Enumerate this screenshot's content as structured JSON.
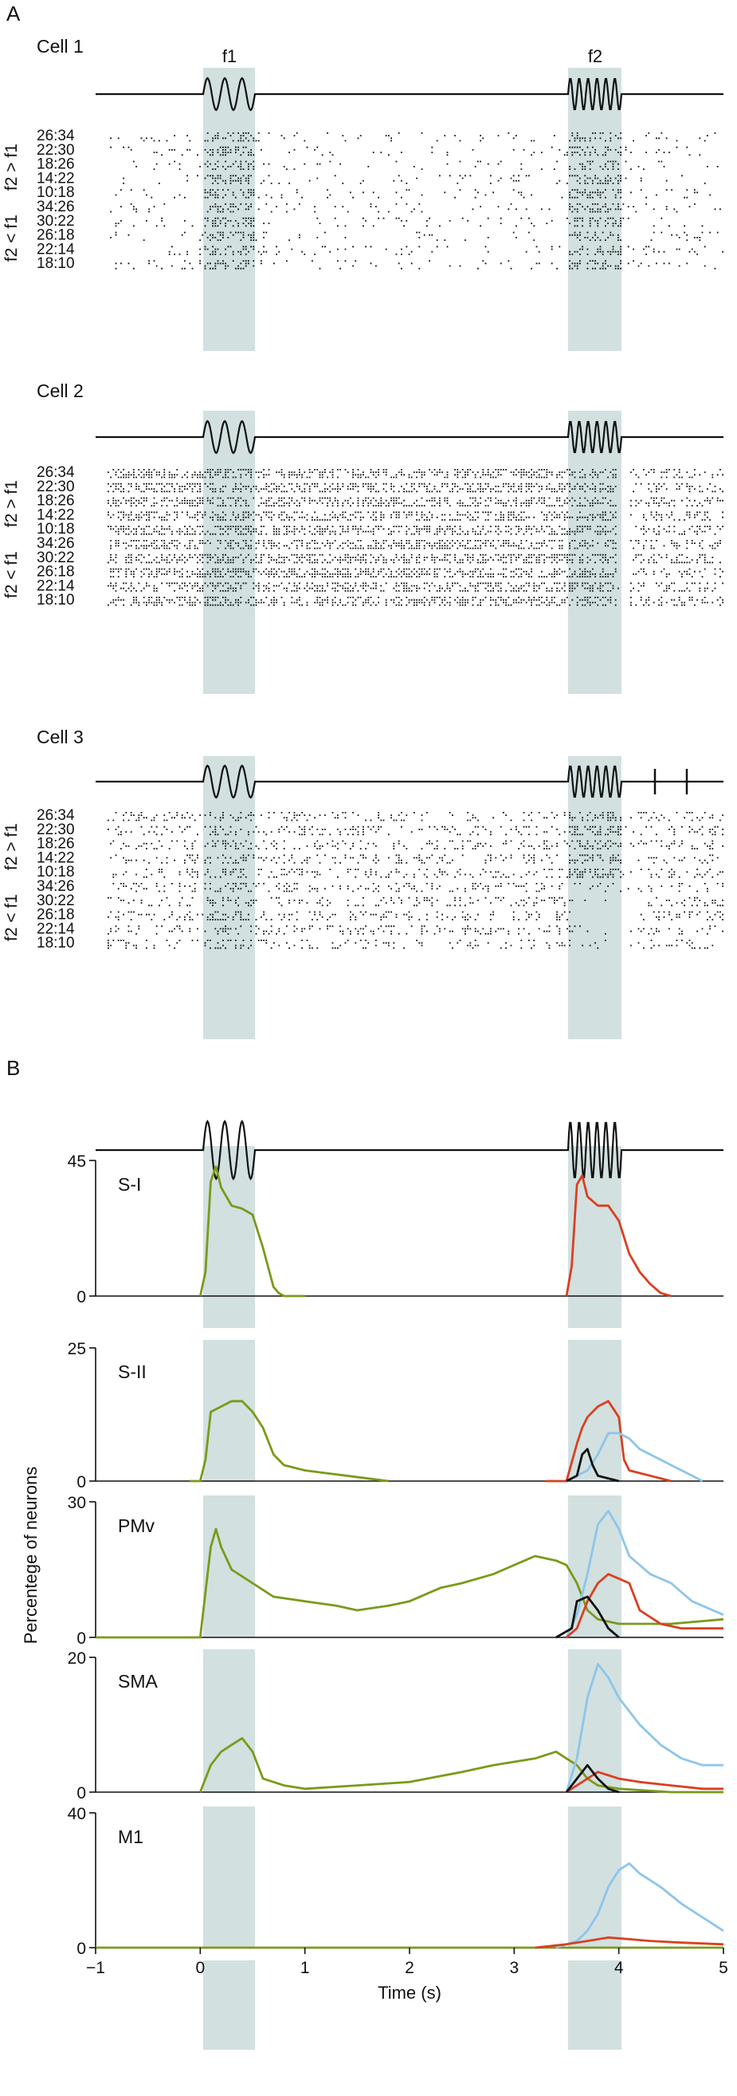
{
  "panel_labels": {
    "a": "A",
    "b": "B"
  },
  "stimulus": {
    "f1_label": "f1",
    "f2_label": "f2"
  },
  "raster_rows": [
    "26:34",
    "22:30",
    "18:26",
    "14:22",
    "10:18",
    "34:26",
    "30:22",
    "26:18",
    "22:14",
    "18:10"
  ],
  "group_labels": {
    "upper": "f2 > f1",
    "lower": "f2 < f1"
  },
  "cells": [
    {
      "title": "Cell 1"
    },
    {
      "title": "Cell 2"
    },
    {
      "title": "Cell 3"
    }
  ],
  "colors": {
    "green": "#7a9a1a",
    "red": "#d94020",
    "blue": "#8ec5ea",
    "black": "#111111",
    "shade": "#d2e0e0"
  },
  "chart_data": [
    {
      "type": "line",
      "title": "S-I",
      "xlabel": "Time (s)",
      "ylabel": "Percentege of neurons",
      "xlim": [
        -1,
        5
      ],
      "ylim": [
        0,
        45
      ],
      "yticks": [
        0,
        45
      ],
      "xticks": [
        -1,
        0,
        1,
        2,
        3,
        4,
        5
      ],
      "shaded_periods": [
        [
          0,
          0.5
        ],
        [
          3.5,
          4.0
        ]
      ],
      "series": [
        {
          "color": "#7a9a1a",
          "x": [
            0,
            0.05,
            0.1,
            0.15,
            0.2,
            0.3,
            0.4,
            0.5,
            0.6,
            0.7,
            0.75,
            0.8,
            1.0
          ],
          "y": [
            0,
            8,
            38,
            43,
            36,
            30,
            29,
            27,
            16,
            3,
            1,
            0,
            0
          ]
        },
        {
          "color": "#d94020",
          "x": [
            3.5,
            3.55,
            3.6,
            3.65,
            3.7,
            3.8,
            3.9,
            4.0,
            4.1,
            4.2,
            4.3,
            4.4,
            4.5
          ],
          "y": [
            0,
            10,
            37,
            40,
            33,
            30,
            30,
            25,
            14,
            8,
            4,
            1,
            0
          ]
        }
      ]
    },
    {
      "type": "line",
      "title": "S-II",
      "xlabel": "Time (s)",
      "ylabel": "Percentege of neurons",
      "xlim": [
        -1,
        5
      ],
      "ylim": [
        0,
        25
      ],
      "yticks": [
        0,
        25
      ],
      "xticks": [
        -1,
        0,
        1,
        2,
        3,
        4,
        5
      ],
      "shaded_periods": [
        [
          0,
          0.5
        ],
        [
          3.5,
          4.0
        ]
      ],
      "series": [
        {
          "color": "#7a9a1a",
          "x": [
            -0.1,
            0,
            0.05,
            0.1,
            0.2,
            0.3,
            0.4,
            0.5,
            0.6,
            0.7,
            0.8,
            1.0,
            1.2,
            1.4,
            1.6,
            1.8
          ],
          "y": [
            0,
            0,
            4,
            13,
            14,
            15,
            15,
            13,
            10,
            5,
            3,
            2,
            1.5,
            1,
            0.5,
            0
          ]
        },
        {
          "color": "#d94020",
          "x": [
            3.3,
            3.5,
            3.6,
            3.65,
            3.7,
            3.8,
            3.9,
            4.0,
            4.05,
            4.1,
            4.2,
            4.3,
            4.5
          ],
          "y": [
            0,
            0,
            7,
            10,
            12,
            14,
            15,
            12,
            4,
            2,
            1.5,
            1,
            0
          ]
        },
        {
          "color": "#8ec5ea",
          "x": [
            3.5,
            3.7,
            3.8,
            3.9,
            4.0,
            4.1,
            4.2,
            4.3,
            4.4,
            4.5,
            4.6,
            4.7,
            4.8
          ],
          "y": [
            0,
            2,
            5,
            9,
            9,
            8,
            6,
            5,
            4,
            3,
            2,
            1,
            0
          ]
        },
        {
          "color": "#111111",
          "x": [
            3.5,
            3.6,
            3.65,
            3.7,
            3.75,
            3.8,
            3.9,
            4.0
          ],
          "y": [
            0,
            1,
            5,
            6,
            3,
            1,
            0.5,
            0
          ]
        }
      ]
    },
    {
      "type": "line",
      "title": "PMv",
      "xlabel": "Time (s)",
      "ylabel": "Percentege of neurons",
      "xlim": [
        -1,
        5
      ],
      "ylim": [
        0,
        30
      ],
      "yticks": [
        0,
        30
      ],
      "xticks": [
        -1,
        0,
        1,
        2,
        3,
        4,
        5
      ],
      "shaded_periods": [
        [
          0,
          0.5
        ],
        [
          3.5,
          4.0
        ]
      ],
      "series": [
        {
          "color": "#7a9a1a",
          "x": [
            -1.0,
            -0.5,
            0,
            0.05,
            0.1,
            0.15,
            0.2,
            0.3,
            0.5,
            0.7,
            1.0,
            1.3,
            1.5,
            1.8,
            2.0,
            2.3,
            2.5,
            2.8,
            3.0,
            3.2,
            3.4,
            3.5,
            3.6,
            3.7,
            3.8,
            4.0,
            4.5,
            5.0
          ],
          "y": [
            0,
            0,
            0,
            10,
            20,
            24,
            20,
            15,
            12,
            9,
            8,
            7,
            6,
            7,
            8,
            11,
            12,
            14,
            16,
            18,
            17,
            16,
            12,
            6,
            4,
            3,
            3,
            4
          ]
        },
        {
          "color": "#8ec5ea",
          "x": [
            3.5,
            3.6,
            3.7,
            3.8,
            3.9,
            4.0,
            4.1,
            4.3,
            4.5,
            4.7,
            5.0
          ],
          "y": [
            0,
            5,
            14,
            25,
            28,
            24,
            18,
            14,
            12,
            8,
            5
          ]
        },
        {
          "color": "#d94020",
          "x": [
            3.5,
            3.6,
            3.7,
            3.8,
            3.9,
            4.0,
            4.1,
            4.2,
            4.4,
            4.6,
            5.0
          ],
          "y": [
            0,
            2,
            8,
            12,
            14,
            13,
            12,
            6,
            3,
            2,
            2
          ]
        },
        {
          "color": "#111111",
          "x": [
            3.4,
            3.55,
            3.6,
            3.7,
            3.8,
            3.9,
            4.0
          ],
          "y": [
            0,
            2,
            8,
            9,
            6,
            2,
            0
          ]
        }
      ]
    },
    {
      "type": "line",
      "title": "SMA",
      "xlabel": "Time (s)",
      "ylabel": "Percentege of neurons",
      "xlim": [
        -1,
        5
      ],
      "ylim": [
        0,
        20
      ],
      "yticks": [
        0,
        20
      ],
      "xticks": [
        -1,
        0,
        1,
        2,
        3,
        4,
        5
      ],
      "shaded_periods": [
        [
          0,
          0.5
        ],
        [
          3.5,
          4.0
        ]
      ],
      "series": [
        {
          "color": "#7a9a1a",
          "x": [
            0,
            0.05,
            0.1,
            0.2,
            0.3,
            0.4,
            0.5,
            0.6,
            0.8,
            1.0,
            1.5,
            2.0,
            2.5,
            2.8,
            3.0,
            3.2,
            3.4,
            3.5,
            3.6,
            3.7,
            3.8,
            4.0,
            4.5,
            5.0
          ],
          "y": [
            0,
            2,
            4,
            6,
            7,
            8,
            6,
            2,
            1,
            0.5,
            1,
            1.5,
            3,
            4,
            4.5,
            5,
            6,
            5,
            4,
            2,
            1,
            0.5,
            0,
            0
          ]
        },
        {
          "color": "#8ec5ea",
          "x": [
            3.5,
            3.6,
            3.7,
            3.8,
            3.9,
            4.0,
            4.2,
            4.4,
            4.6,
            4.8,
            5.0
          ],
          "y": [
            0,
            5,
            14,
            19,
            17,
            14,
            10,
            7,
            5,
            4,
            4
          ]
        },
        {
          "color": "#d94020",
          "x": [
            3.5,
            3.7,
            3.8,
            4.0,
            4.2,
            4.5,
            4.8,
            5.0
          ],
          "y": [
            0,
            2,
            3,
            2,
            1.5,
            1,
            0.5,
            0.5
          ]
        },
        {
          "color": "#111111",
          "x": [
            3.5,
            3.6,
            3.7,
            3.8,
            3.9,
            4.0
          ],
          "y": [
            0,
            2,
            4,
            2,
            0.5,
            0
          ]
        }
      ]
    },
    {
      "type": "line",
      "title": "M1",
      "xlabel": "Time (s)",
      "ylabel": "Percentege of neurons",
      "xlim": [
        -1,
        5
      ],
      "ylim": [
        0,
        40
      ],
      "yticks": [
        0,
        40
      ],
      "xticks": [
        -1,
        0,
        1,
        2,
        3,
        4,
        5
      ],
      "shaded_periods": [
        [
          0,
          0.5
        ],
        [
          3.5,
          4.0
        ]
      ],
      "series": [
        {
          "color": "#7a9a1a",
          "x": [
            -1.0,
            0,
            1.0,
            2.0,
            3.0,
            4.0,
            5.0
          ],
          "y": [
            0,
            0,
            0,
            0,
            0,
            0,
            0
          ]
        },
        {
          "color": "#8ec5ea",
          "x": [
            3.4,
            3.6,
            3.7,
            3.8,
            3.9,
            4.0,
            4.1,
            4.2,
            4.4,
            4.6,
            4.8,
            5.0
          ],
          "y": [
            0,
            2,
            5,
            10,
            18,
            23,
            25,
            22,
            18,
            13,
            9,
            5
          ]
        },
        {
          "color": "#d94020",
          "x": [
            3.2,
            3.5,
            3.7,
            3.9,
            4.1,
            4.3,
            4.6,
            5.0
          ],
          "y": [
            0,
            1,
            2,
            3,
            2.5,
            2,
            1.5,
            1
          ]
        }
      ]
    }
  ]
}
